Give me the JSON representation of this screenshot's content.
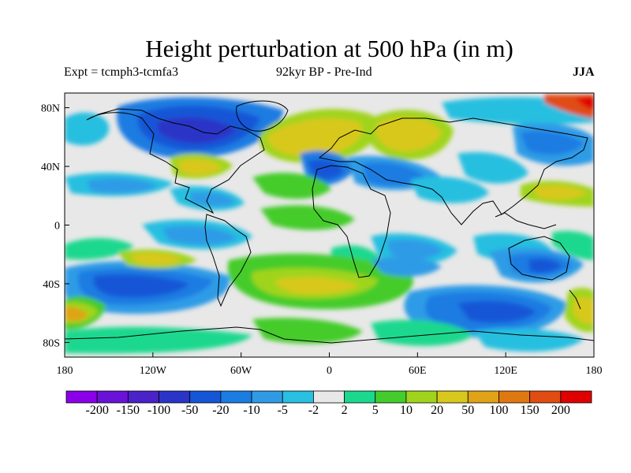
{
  "title": "Height perturbation at 500 hPa (in m)",
  "subtitle": {
    "left": "Expt = tcmph3-tcmfa3",
    "center": "92kyr BP - Pre-Ind",
    "right": "JJA"
  },
  "axes": {
    "y_ticks": [
      {
        "label": "80N",
        "lat": 80
      },
      {
        "label": "40N",
        "lat": 40
      },
      {
        "label": "0",
        "lat": 0
      },
      {
        "label": "40S",
        "lat": -40
      },
      {
        "label": "80S",
        "lat": -80
      }
    ],
    "x_ticks": [
      {
        "label": "180",
        "lon": -180
      },
      {
        "label": "120W",
        "lon": -120
      },
      {
        "label": "60W",
        "lon": -60
      },
      {
        "label": "0",
        "lon": 0
      },
      {
        "label": "60E",
        "lon": 60
      },
      {
        "label": "120E",
        "lon": 120
      },
      {
        "label": "180",
        "lon": 180
      }
    ],
    "lon_range": [
      -180,
      180
    ],
    "lat_range": [
      -90,
      90
    ]
  },
  "colorbar": {
    "colors": [
      "#8a00e8",
      "#6a12d8",
      "#4a22c8",
      "#2a35c8",
      "#1556d6",
      "#1b7ce2",
      "#2f9be6",
      "#28bfe0",
      "#e8e8e8",
      "#1ad88e",
      "#44cc2c",
      "#a0d41c",
      "#d8c81c",
      "#e0a216",
      "#e07812",
      "#e04c12",
      "#e00000"
    ],
    "labels": [
      "-200",
      "-150",
      "-100",
      "-50",
      "-20",
      "-10",
      "-5",
      "-2",
      "2",
      "5",
      "10",
      "20",
      "50",
      "100",
      "150",
      "200"
    ]
  },
  "colors": {
    "neutral": "#e8e8e8",
    "coast": "#000000"
  }
}
